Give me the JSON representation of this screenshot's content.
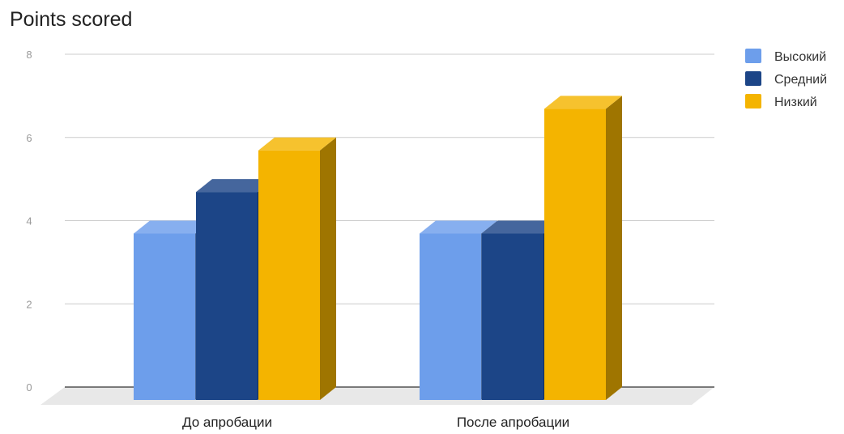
{
  "chart_data": {
    "type": "bar",
    "title": "Points scored",
    "categories": [
      "До апробации",
      "После апробации"
    ],
    "series": [
      {
        "name": "Высокий",
        "values": [
          4,
          4
        ],
        "color": "#6d9eeb"
      },
      {
        "name": "Средний",
        "values": [
          5,
          4
        ],
        "color": "#1c4587"
      },
      {
        "name": "Низкий",
        "values": [
          6,
          7
        ],
        "color": "#f4b400"
      }
    ],
    "ylim": [
      0,
      8
    ],
    "yticks": [
      "0",
      "2",
      "4",
      "6",
      "8"
    ],
    "grid": true,
    "legend_position": "right",
    "style": "3d"
  }
}
